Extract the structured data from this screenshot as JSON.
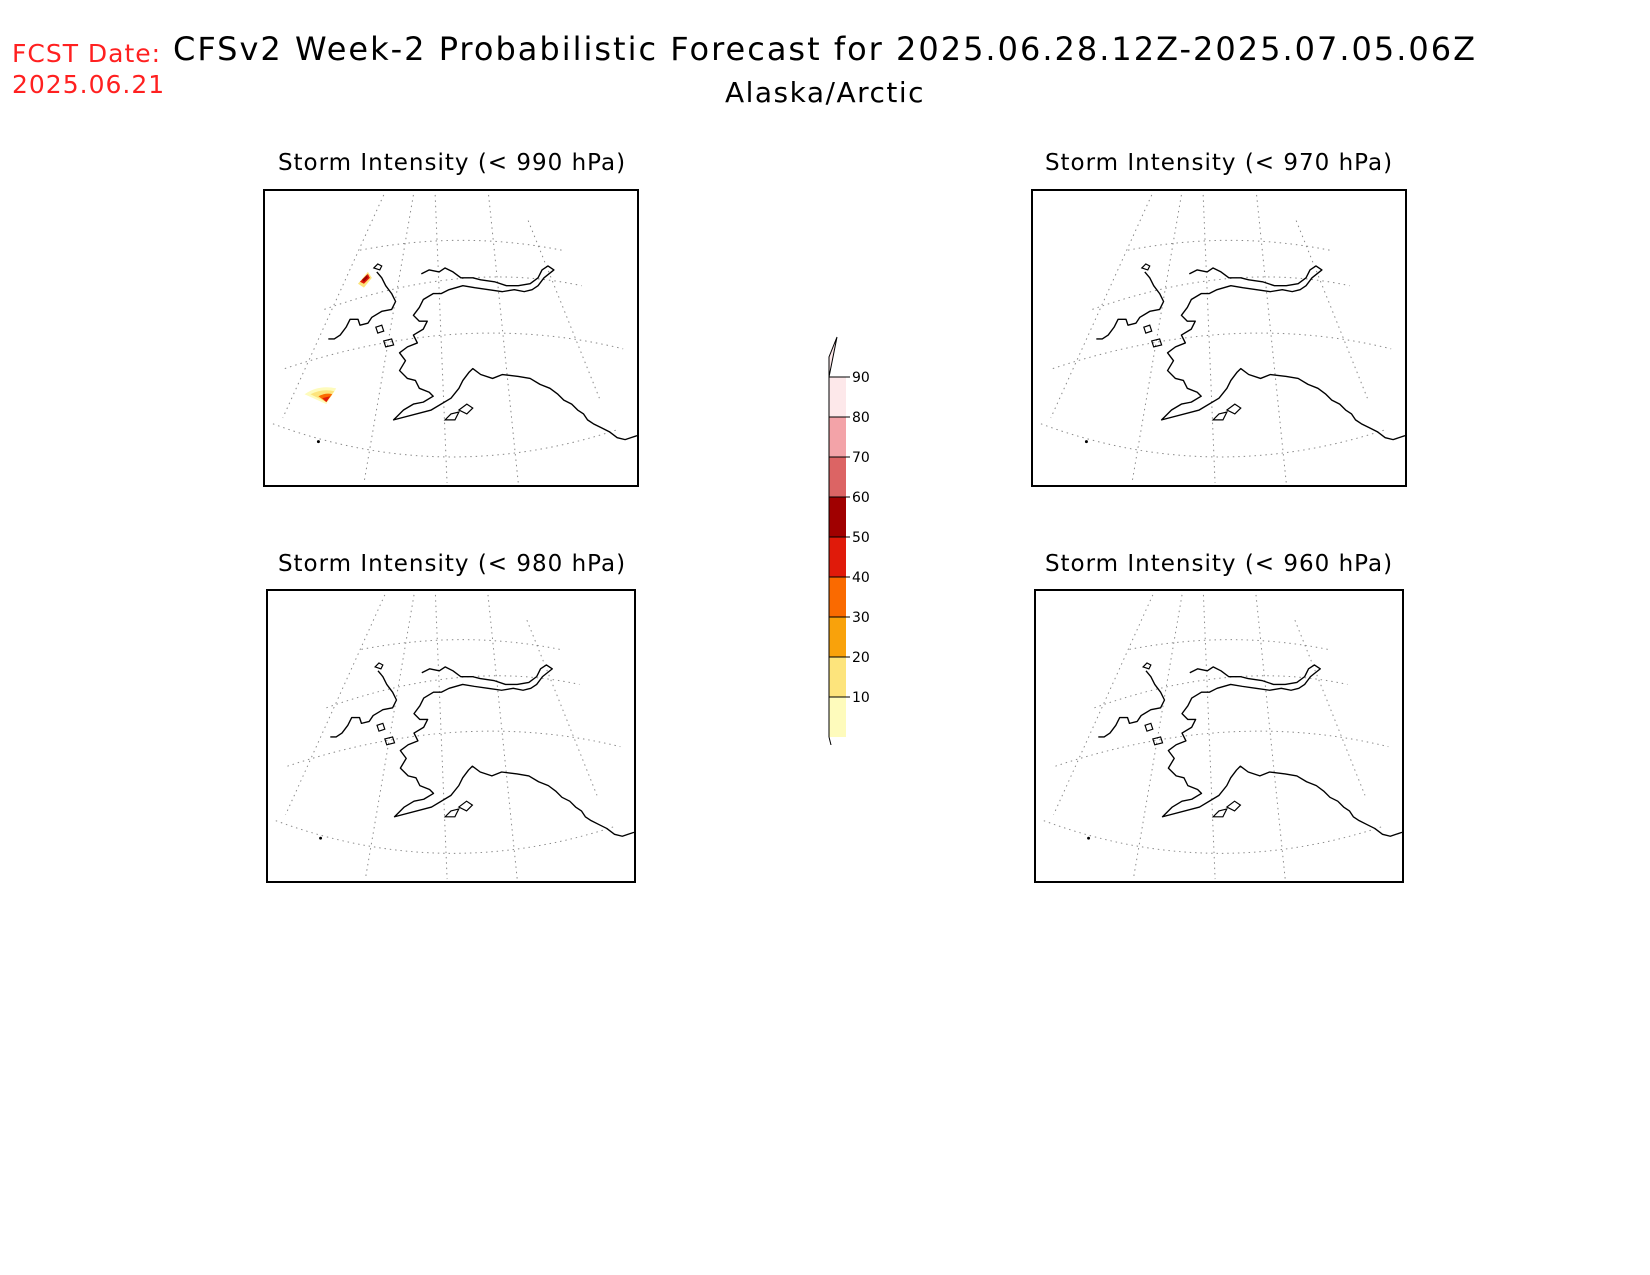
{
  "header": {
    "fcst_label": "FCST Date:",
    "fcst_date": "2025.06.21",
    "title": "CFSv2 Week-2 Probabilistic Forecast for 2025.06.28.12Z-2025.07.05.06Z",
    "subtitle": "Alaska/Arctic"
  },
  "panels": [
    {
      "title": "Storm Intensity (< 990 hPa)",
      "has_storms": true
    },
    {
      "title": "Storm Intensity (< 970 hPa)",
      "has_storms": false
    },
    {
      "title": "Storm Intensity (< 980 hPa)",
      "has_storms": false
    },
    {
      "title": "Storm Intensity (< 960 hPa)",
      "has_storms": false
    }
  ],
  "colorbar": {
    "levels": [
      "90",
      "80",
      "70",
      "60",
      "50",
      "40",
      "30",
      "20",
      "10"
    ],
    "colors": [
      "#fde8ea",
      "#f3a3a8",
      "#dc6464",
      "#a00000",
      "#e01a0a",
      "#fa6a00",
      "#f9a20b",
      "#fde47c",
      "#fefbbc"
    ]
  }
}
